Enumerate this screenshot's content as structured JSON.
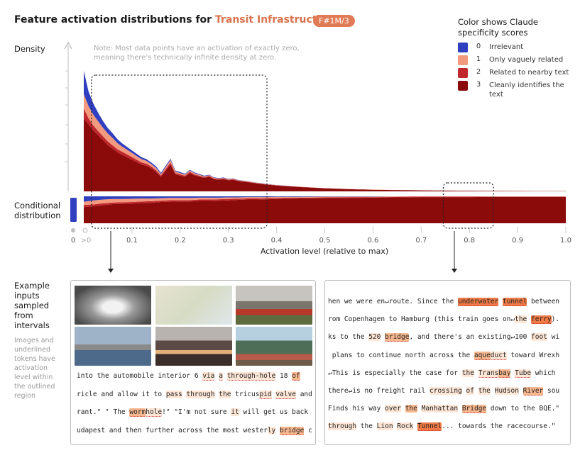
{
  "title": {
    "prefix": "Feature activation distributions for ",
    "accent": "Transit Infrastructure",
    "badge": "F#1M/3"
  },
  "labels": {
    "density": "Density",
    "conditional": "Conditional distribution",
    "note": "Note: Most data points have an activation of exactly zero, meaning there's technically infinite density at zero.",
    "examples": "Example inputs sampled from intervals",
    "examples_note": "Images and underlined tokens have activation level within the outlined region"
  },
  "legend": {
    "title": "Color shows Claude specificity scores",
    "items": [
      {
        "num": "0",
        "label": "Irrelevant",
        "color": "#2f3fbf"
      },
      {
        "num": "1",
        "label": "Only vaguely related",
        "color": "#f39a7e"
      },
      {
        "num": "2",
        "label": "Related to nearby text",
        "color": "#c0272d"
      },
      {
        "num": "3",
        "label": "Cleanly identifies the text",
        "color": "#8b0a0a"
      }
    ]
  },
  "chart_data": {
    "type": "area",
    "xlabel": "Activation level (relative to max)",
    "ylabel": "Density",
    "xlim": [
      0,
      1
    ],
    "x_ticks": [
      "0",
      ">0",
      "0.1",
      "0.2",
      "0.3",
      "0.4",
      "0.5",
      "0.6",
      "0.7",
      "0.8",
      "0.9",
      "1.0"
    ],
    "x": [
      0.0,
      0.01,
      0.02,
      0.03,
      0.04,
      0.05,
      0.06,
      0.07,
      0.08,
      0.09,
      0.1,
      0.11,
      0.12,
      0.13,
      0.14,
      0.15,
      0.16,
      0.17,
      0.18,
      0.19,
      0.2,
      0.21,
      0.22,
      0.23,
      0.24,
      0.25,
      0.26,
      0.27,
      0.28,
      0.29,
      0.3,
      0.31,
      0.32,
      0.33,
      0.34,
      0.35,
      0.36,
      0.37,
      0.38,
      0.4,
      0.45,
      0.5,
      0.55,
      0.6,
      0.65,
      0.7,
      0.75,
      0.8,
      0.85,
      0.9,
      0.95,
      1.0
    ],
    "series": [
      {
        "name": "0",
        "values": [
          19,
          12,
          9,
          7,
          5.5,
          4.5,
          3.8,
          3.2,
          2.6,
          2.3,
          2.0,
          1.8,
          1.5,
          1.4,
          1.2,
          1.3,
          1.0,
          1.0,
          0.9,
          0.8,
          0.8,
          0.7,
          0.6,
          0.6,
          0.6,
          0.5,
          0.4,
          0.4,
          0.3,
          0.3,
          0.3,
          0.2,
          0.2,
          0.2,
          0.15,
          0.12,
          0.1,
          0.1,
          0.08,
          0.05,
          0.03,
          0.02,
          0.01,
          0.01,
          0.01,
          0.0,
          0.0,
          0.0,
          0.0,
          0.0,
          0.0,
          0.0
        ]
      },
      {
        "name": "1",
        "values": [
          12,
          10,
          9,
          8,
          7,
          6.5,
          6,
          5,
          4.2,
          3.8,
          3.4,
          3,
          2.7,
          2.4,
          2.0,
          1.8,
          1.2,
          1.7,
          2.2,
          1.2,
          1.0,
          0.9,
          1.1,
          1.0,
          0.8,
          0.7,
          0.6,
          0.6,
          0.5,
          0.5,
          0.4,
          0.5,
          0.3,
          0.3,
          0.3,
          0.3,
          0.25,
          0.2,
          0.2,
          0.15,
          0.1,
          0.07,
          0.05,
          0.04,
          0.03,
          0.02,
          0.02,
          0.01,
          0.01,
          0.01,
          0.01,
          0.01
        ]
      },
      {
        "name": "2",
        "values": [
          8,
          5,
          4,
          3.5,
          3.2,
          3,
          2.8,
          2.6,
          2.5,
          2.4,
          2.2,
          2.0,
          1.8,
          1.7,
          1.5,
          1.4,
          1.0,
          1.4,
          1.6,
          1.1,
          1.0,
          0.9,
          1.0,
          0.9,
          0.8,
          0.7,
          0.7,
          0.6,
          0.6,
          0.6,
          0.5,
          0.5,
          0.4,
          0.4,
          0.4,
          0.3,
          0.3,
          0.3,
          0.3,
          0.25,
          0.18,
          0.12,
          0.1,
          0.08,
          0.06,
          0.05,
          0.04,
          0.03,
          0.02,
          0.02,
          0.01,
          0.01
        ]
      },
      {
        "name": "3",
        "values": [
          60,
          55,
          50,
          46,
          42,
          38,
          35,
          32,
          30,
          28,
          26,
          24,
          22,
          21,
          19,
          16,
          12,
          17,
          22,
          14,
          13,
          12,
          15,
          13,
          12,
          11,
          12,
          10,
          9.5,
          10,
          9,
          9.5,
          8.5,
          8,
          7.5,
          7,
          6.5,
          6,
          5.5,
          4.8,
          3.5,
          2.5,
          1.8,
          1.3,
          1.0,
          0.8,
          0.6,
          0.5,
          0.4,
          0.3,
          0.25,
          0.2
        ]
      }
    ],
    "conditional": {
      "x": [
        0.0,
        0.02,
        0.04,
        0.06,
        0.08,
        0.1,
        0.12,
        0.14,
        0.16,
        0.18,
        0.2,
        0.22,
        0.24,
        0.26,
        0.28,
        0.3,
        0.32,
        0.34,
        0.36,
        0.38,
        0.4,
        0.45,
        0.5,
        0.55,
        0.6,
        0.65,
        0.7,
        0.75,
        0.8,
        0.85,
        0.9,
        0.95,
        1.0
      ],
      "series": [
        {
          "name": "0",
          "values": [
            0.2,
            0.15,
            0.12,
            0.1,
            0.1,
            0.09,
            0.08,
            0.08,
            0.07,
            0.06,
            0.06,
            0.06,
            0.05,
            0.05,
            0.05,
            0.04,
            0.04,
            0.03,
            0.03,
            0.03,
            0.02,
            0.02,
            0.01,
            0.01,
            0.01,
            0.0,
            0.0,
            0.0,
            0.0,
            0.0,
            0.0,
            0.0,
            0.0
          ]
        },
        {
          "name": "1",
          "values": [
            0.12,
            0.15,
            0.14,
            0.13,
            0.12,
            0.12,
            0.11,
            0.1,
            0.09,
            0.08,
            0.08,
            0.08,
            0.07,
            0.07,
            0.06,
            0.06,
            0.05,
            0.05,
            0.05,
            0.04,
            0.04,
            0.03,
            0.03,
            0.02,
            0.02,
            0.02,
            0.01,
            0.01,
            0.01,
            0.01,
            0.01,
            0.01,
            0.01
          ]
        },
        {
          "name": "2",
          "values": [
            0.08,
            0.07,
            0.07,
            0.06,
            0.06,
            0.06,
            0.06,
            0.06,
            0.05,
            0.06,
            0.05,
            0.05,
            0.05,
            0.05,
            0.05,
            0.05,
            0.04,
            0.04,
            0.04,
            0.04,
            0.04,
            0.03,
            0.03,
            0.03,
            0.02,
            0.02,
            0.02,
            0.02,
            0.02,
            0.01,
            0.01,
            0.01,
            0.01
          ]
        },
        {
          "name": "3",
          "values": [
            0.6,
            0.63,
            0.67,
            0.71,
            0.72,
            0.73,
            0.75,
            0.76,
            0.79,
            0.8,
            0.81,
            0.81,
            0.83,
            0.83,
            0.84,
            0.85,
            0.87,
            0.88,
            0.88,
            0.89,
            0.9,
            0.92,
            0.93,
            0.94,
            0.95,
            0.96,
            0.97,
            0.97,
            0.97,
            0.98,
            0.98,
            0.98,
            0.98
          ]
        }
      ]
    },
    "zero_bar": {
      "irrelevant_fraction": 1.0
    },
    "outlined_regions": [
      [
        0.01,
        0.38
      ],
      [
        0.74,
        0.85
      ]
    ]
  },
  "images": [
    {
      "name": "tunnel-photo",
      "bg": "#6a6a6a"
    },
    {
      "name": "transit-map-photo",
      "bg": "#d9dcc9"
    },
    {
      "name": "steam-train-photo",
      "bg": "#8f8a84"
    },
    {
      "name": "bridge-photo",
      "bg": "#7c8fa5"
    },
    {
      "name": "city-highway-photo",
      "bg": "#7b5848"
    },
    {
      "name": "aqueduct-boat-photo",
      "bg": "#6e8fa0"
    }
  ],
  "left_lines": [
    [
      {
        "t": "into the automobile interior 6 "
      },
      {
        "t": "via",
        "a": 1,
        "u": 1
      },
      {
        "t": " "
      },
      {
        "t": "a",
        "a": 1,
        "u": 1
      },
      {
        "t": " "
      },
      {
        "t": "through-hole",
        "a": 1,
        "u": 1
      },
      {
        "t": " 18 "
      },
      {
        "t": "of",
        "a": 2,
        "u": 1
      }
    ],
    [
      {
        "t": "ricle and allow it to "
      },
      {
        "t": "pass",
        "a": 1
      },
      {
        "t": " "
      },
      {
        "t": "through",
        "a": 1
      },
      {
        "t": " "
      },
      {
        "t": "the",
        "a": 1
      },
      {
        "t": " tricus"
      },
      {
        "t": "pid",
        "a": 1,
        "u": 1
      },
      {
        "t": " "
      },
      {
        "t": "valve",
        "a": 1,
        "u": 1
      },
      {
        "t": " and"
      }
    ],
    [
      {
        "t": "rant.\" \" The "
      },
      {
        "t": "worm",
        "a": 2,
        "u": 1
      },
      {
        "t": "hole",
        "a": 1,
        "u": 1
      },
      {
        "t": "!\" \"I'm not sure "
      },
      {
        "t": "it",
        "a": 1
      },
      {
        "t": " will get us back"
      }
    ],
    [
      {
        "t": "udapest and then further across the most wester"
      },
      {
        "t": "ly",
        "a": 1
      },
      {
        "t": " "
      },
      {
        "t": "bridge",
        "a": 2,
        "u": 1
      },
      {
        "t": " c"
      }
    ]
  ],
  "right_lines": [
    [
      {
        "t": "hen we were en↵route. Since the "
      },
      {
        "t": "underwater",
        "a": 3,
        "u": 1
      },
      {
        "t": " "
      },
      {
        "t": "tunnel",
        "a": 3,
        "u": 1
      },
      {
        "t": " between"
      }
    ],
    [
      {
        "t": "rom Copenhagen to Hamburg (this train goes on↵"
      },
      {
        "t": "the",
        "a": 1
      },
      {
        "t": " "
      },
      {
        "t": "ferry",
        "a": 3,
        "u": 1
      },
      {
        "t": ")."
      }
    ],
    [
      {
        "t": "ks to the "
      },
      {
        "t": "520",
        "a": 1
      },
      {
        "t": " "
      },
      {
        "t": "bridge",
        "a": 2,
        "u": 1
      },
      {
        "t": ", and there's an existing↵100 "
      },
      {
        "t": "foot",
        "a": 1
      },
      {
        "t": " wi"
      }
    ],
    [
      {
        "t": " plans to continue north across the "
      },
      {
        "t": "aque",
        "a": 2,
        "u": 1
      },
      {
        "t": "duct",
        "a": 1,
        "u": 1
      },
      {
        "t": " toward Wrexh"
      }
    ],
    [
      {
        "t": "↵This is especially the case for "
      },
      {
        "t": "the",
        "a": 1
      },
      {
        "t": " "
      },
      {
        "t": "Trans",
        "a": 1,
        "u": 1
      },
      {
        "t": "bay",
        "a": 2,
        "u": 1
      },
      {
        "t": " "
      },
      {
        "t": "Tube",
        "a": 1,
        "u": 1
      },
      {
        "t": " which"
      }
    ],
    [
      {
        "t": "there↵is no freight rail "
      },
      {
        "t": "crossing",
        "a": 1
      },
      {
        "t": " "
      },
      {
        "t": "of",
        "a": 1
      },
      {
        "t": " "
      },
      {
        "t": "the",
        "a": 1
      },
      {
        "t": " "
      },
      {
        "t": "Hudson",
        "a": 1
      },
      {
        "t": " "
      },
      {
        "t": "River",
        "a": 2,
        "u": 1
      },
      {
        "t": " sou"
      }
    ],
    [
      {
        "t": "Finds his way "
      },
      {
        "t": "over",
        "a": 1
      },
      {
        "t": " "
      },
      {
        "t": "the",
        "a": 2
      },
      {
        "t": " "
      },
      {
        "t": "Manhattan",
        "a": 1
      },
      {
        "t": " "
      },
      {
        "t": "Bridge",
        "a": 2,
        "u": 1
      },
      {
        "t": " down to the BQE.\""
      }
    ],
    [
      {
        "t": "through",
        "a": 1
      },
      {
        "t": " the "
      },
      {
        "t": "Lion",
        "a": 1
      },
      {
        "t": " "
      },
      {
        "t": "Rock",
        "a": 1
      },
      {
        "t": " "
      },
      {
        "t": "Tunnel",
        "a": 3,
        "u": 1
      },
      {
        "t": "... towards the racecourse.\""
      }
    ]
  ]
}
